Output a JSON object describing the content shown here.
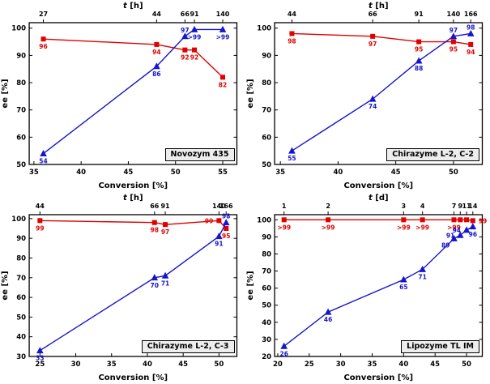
{
  "page": {
    "background": "#ffffff"
  },
  "colors": {
    "red_series": "#e00000",
    "blue_series": "#1515cc",
    "axis": "#000000",
    "legend_bg": "#ededed"
  },
  "chart_data": [
    {
      "type": "line",
      "name": "Novozym 435",
      "xlabel": "Conversion [%]",
      "ylabel": "ee [%]",
      "top_axis": {
        "var": "t",
        "unit": "[h]",
        "ticks": [
          "27",
          "44",
          "66",
          "91",
          "140"
        ]
      },
      "xlim": [
        34.5,
        56.5
      ],
      "ylim": [
        50,
        102
      ],
      "xticks": [
        35,
        40,
        45,
        50,
        55
      ],
      "yticks": [
        50,
        60,
        70,
        80,
        90,
        100
      ],
      "x": [
        36,
        48,
        51,
        52,
        55
      ],
      "series": [
        {
          "name": "red-squares",
          "marker": "square",
          "color": "red",
          "values": [
            96,
            94,
            92,
            92,
            82
          ],
          "labels": [
            "96",
            "94",
            "92",
            "92",
            "82"
          ],
          "label_pos": [
            "b",
            "b",
            "b",
            "b",
            "b"
          ]
        },
        {
          "name": "blue-triangles",
          "marker": "triangle",
          "color": "blue",
          "values": [
            54,
            86,
            97,
            99.5,
            99.5
          ],
          "labels": [
            "54",
            "86",
            "97",
            ">99",
            ">99"
          ],
          "label_pos": [
            "b",
            "b",
            "a",
            "b",
            "b"
          ]
        }
      ]
    },
    {
      "type": "line",
      "name": "Chirazyme L-2, C-2",
      "xlabel": "Conversion [%]",
      "ylabel": "ee [%]",
      "top_axis": {
        "var": "t",
        "unit": "[h]",
        "ticks": [
          "44",
          "66",
          "91",
          "140",
          "166"
        ]
      },
      "xlim": [
        34.5,
        52.5
      ],
      "ylim": [
        50,
        102
      ],
      "xticks": [
        35,
        40,
        45,
        50
      ],
      "yticks": [
        50,
        60,
        70,
        80,
        90,
        100
      ],
      "x": [
        36,
        43,
        47,
        50,
        51.5
      ],
      "series": [
        {
          "name": "red-squares",
          "marker": "square",
          "color": "red",
          "values": [
            98,
            97,
            95,
            95,
            94
          ],
          "labels": [
            "98",
            "97",
            "95",
            "95",
            "94"
          ],
          "label_pos": [
            "b",
            "b",
            "b",
            "b",
            "b"
          ]
        },
        {
          "name": "blue-triangles",
          "marker": "triangle",
          "color": "blue",
          "values": [
            55,
            74,
            88,
            97,
            98
          ],
          "labels": [
            "55",
            "74",
            "88",
            "97",
            "98"
          ],
          "label_pos": [
            "b",
            "b",
            "b",
            "a",
            "a"
          ]
        }
      ]
    },
    {
      "type": "line",
      "name": "Chirazyme L-2, C-3",
      "xlabel": "Conversion [%]",
      "ylabel": "ee [%]",
      "top_axis": {
        "var": "t",
        "unit": "[h]",
        "ticks": [
          "44",
          "66",
          "91",
          "140",
          "166"
        ]
      },
      "xlim": [
        23.5,
        52.5
      ],
      "ylim": [
        30,
        102
      ],
      "xticks": [
        25,
        30,
        35,
        40,
        45,
        50
      ],
      "yticks": [
        30,
        40,
        50,
        60,
        70,
        80,
        90,
        100
      ],
      "x": [
        25,
        41,
        42.5,
        50,
        51
      ],
      "series": [
        {
          "name": "red-squares",
          "marker": "square",
          "color": "red",
          "values": [
            99,
            98,
            97,
            99,
            95
          ],
          "labels": [
            "99",
            "98",
            "97",
            "99",
            "95"
          ],
          "label_pos": [
            "b",
            "b",
            "b",
            "l",
            "b"
          ]
        },
        {
          "name": "blue-triangles",
          "marker": "triangle",
          "color": "blue",
          "values": [
            33,
            70,
            71,
            91,
            98
          ],
          "labels": [
            "33",
            "70",
            "71",
            "91",
            "98"
          ],
          "label_pos": [
            "b",
            "b",
            "b",
            "b",
            "a"
          ]
        }
      ]
    },
    {
      "type": "line",
      "name": "Lipozyme TL IM",
      "xlabel": "Conversion [%]",
      "ylabel": "ee [%]",
      "top_axis": {
        "var": "t",
        "unit": "[d]",
        "ticks": [
          "1",
          "2",
          "3",
          "4",
          "7",
          "9",
          "11",
          "14"
        ]
      },
      "xlim": [
        19.5,
        52.5
      ],
      "ylim": [
        20,
        103
      ],
      "xticks": [
        20,
        25,
        30,
        35,
        40,
        45,
        50
      ],
      "yticks": [
        20,
        30,
        40,
        50,
        60,
        70,
        80,
        90,
        100
      ],
      "x": [
        21,
        28,
        40,
        43,
        48,
        49,
        50,
        51
      ],
      "series": [
        {
          "name": "red-squares",
          "marker": "square",
          "color": "red",
          "values": [
            100,
            100,
            100,
            100,
            100,
            100,
            100,
            99.5
          ],
          "labels": [
            ">99",
            ">99",
            ">99",
            ">99",
            ">99",
            "",
            "",
            "99"
          ],
          "label_pos": [
            "b",
            "b",
            "b",
            "b",
            "b",
            "b",
            "b",
            "r"
          ]
        },
        {
          "name": "blue-triangles",
          "marker": "triangle",
          "color": "blue",
          "values": [
            26,
            46,
            65,
            71,
            89,
            91,
            94,
            96
          ],
          "labels": [
            "26",
            "46",
            "65",
            "71",
            "89",
            "91",
            "94",
            "96"
          ],
          "label_pos": [
            "b",
            "b",
            "b",
            "b",
            "bl",
            "l",
            "l",
            "b"
          ]
        }
      ]
    }
  ]
}
